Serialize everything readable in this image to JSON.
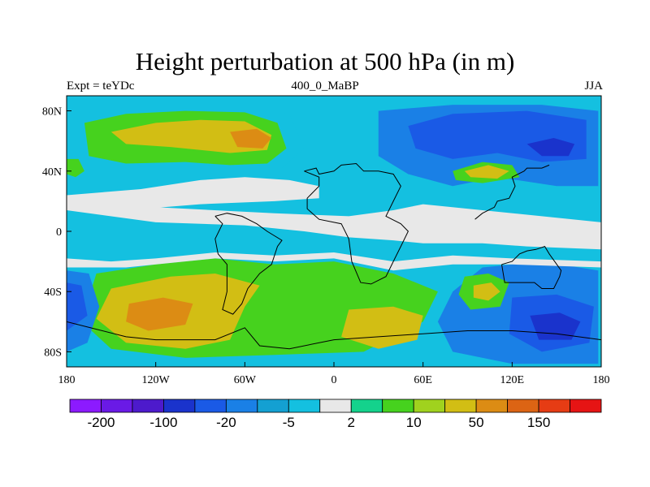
{
  "header": {
    "title": "Height perturbation at 500 hPa (in m)",
    "left": "Expt = teYDc",
    "center": "400_0_MaBP",
    "right": "JJA"
  },
  "axes": {
    "x_ticks": [
      {
        "value": -180,
        "label": "180"
      },
      {
        "value": -120,
        "label": "120W"
      },
      {
        "value": -60,
        "label": "60W"
      },
      {
        "value": 0,
        "label": "0"
      },
      {
        "value": 60,
        "label": "60E"
      },
      {
        "value": 120,
        "label": "120E"
      },
      {
        "value": 180,
        "label": "180"
      }
    ],
    "y_ticks": [
      {
        "value": 80,
        "label": "80N"
      },
      {
        "value": 40,
        "label": "40N"
      },
      {
        "value": 0,
        "label": "0"
      },
      {
        "value": -40,
        "label": "40S"
      },
      {
        "value": -80,
        "label": "80S"
      }
    ],
    "lon_range": [
      -180,
      180
    ],
    "lat_range": [
      -90,
      90
    ]
  },
  "colorbar": {
    "colors": [
      "#8c1aff",
      "#6a1ae6",
      "#4d1acc",
      "#1a33cc",
      "#1a5ae6",
      "#1a80e6",
      "#14a0d2",
      "#14c0e0",
      "#e8e8e8",
      "#14d28c",
      "#46d21e",
      "#a0d21e",
      "#d2be14",
      "#dc8c14",
      "#dc6414",
      "#e63c14",
      "#e61414"
    ],
    "labels": [
      {
        "boundary": 1,
        "text": "-200"
      },
      {
        "boundary": 3,
        "text": "-100"
      },
      {
        "boundary": 5,
        "text": "-20"
      },
      {
        "boundary": 7,
        "text": "-5"
      },
      {
        "boundary": 9,
        "text": "2"
      },
      {
        "boundary": 11,
        "text": "10"
      },
      {
        "boundary": 13,
        "text": "50"
      },
      {
        "boundary": 15,
        "text": "150"
      }
    ]
  },
  "map_data": {
    "regions": [
      {
        "name": "north-land-blob",
        "color": "#14c0e0",
        "points": [
          [
            -172,
            78
          ],
          [
            -140,
            82
          ],
          [
            -100,
            84
          ],
          [
            -60,
            82
          ],
          [
            -30,
            78
          ],
          [
            -20,
            55
          ],
          [
            -35,
            42
          ],
          [
            -60,
            38
          ],
          [
            -100,
            38
          ],
          [
            -130,
            32
          ],
          [
            -160,
            28
          ],
          [
            -178,
            30
          ]
        ]
      },
      {
        "name": "north-green",
        "color": "#46d21e",
        "points": [
          [
            -168,
            72
          ],
          [
            -140,
            78
          ],
          [
            -100,
            80
          ],
          [
            -60,
            79
          ],
          [
            -38,
            72
          ],
          [
            -32,
            55
          ],
          [
            -45,
            45
          ],
          [
            -70,
            44
          ],
          [
            -100,
            46
          ],
          [
            -140,
            45
          ],
          [
            -165,
            50
          ]
        ]
      },
      {
        "name": "north-olive",
        "color": "#d2be14",
        "points": [
          [
            -150,
            66
          ],
          [
            -120,
            72
          ],
          [
            -90,
            74
          ],
          [
            -60,
            73
          ],
          [
            -42,
            64
          ],
          [
            -45,
            54
          ],
          [
            -70,
            52
          ],
          [
            -110,
            56
          ],
          [
            -140,
            58
          ]
        ]
      },
      {
        "name": "north-orange",
        "color": "#dc8c14",
        "points": [
          [
            -70,
            66
          ],
          [
            -52,
            68
          ],
          [
            -42,
            62
          ],
          [
            -48,
            55
          ],
          [
            -65,
            56
          ]
        ]
      },
      {
        "name": "ne-blue-high",
        "color": "#1a80e6",
        "points": [
          [
            30,
            80
          ],
          [
            80,
            84
          ],
          [
            140,
            84
          ],
          [
            178,
            80
          ],
          [
            178,
            30
          ],
          [
            150,
            30
          ],
          [
            110,
            36
          ],
          [
            80,
            30
          ],
          [
            50,
            38
          ],
          [
            30,
            50
          ]
        ]
      },
      {
        "name": "ne-blue-mid",
        "color": "#1a5ae6",
        "points": [
          [
            50,
            70
          ],
          [
            80,
            78
          ],
          [
            130,
            80
          ],
          [
            170,
            74
          ],
          [
            170,
            48
          ],
          [
            140,
            46
          ],
          [
            110,
            52
          ],
          [
            80,
            48
          ],
          [
            55,
            55
          ]
        ]
      },
      {
        "name": "ne-blue-deep",
        "color": "#1a33cc",
        "points": [
          [
            130,
            58
          ],
          [
            148,
            62
          ],
          [
            162,
            58
          ],
          [
            158,
            50
          ],
          [
            140,
            50
          ]
        ]
      },
      {
        "name": "ne-green-lens",
        "color": "#46d21e",
        "points": [
          [
            80,
            40
          ],
          [
            100,
            46
          ],
          [
            120,
            44
          ],
          [
            125,
            36
          ],
          [
            100,
            32
          ],
          [
            82,
            34
          ]
        ]
      },
      {
        "name": "ne-olive-lens",
        "color": "#d2be14",
        "points": [
          [
            88,
            40
          ],
          [
            104,
            44
          ],
          [
            118,
            40
          ],
          [
            110,
            35
          ],
          [
            92,
            36
          ]
        ]
      },
      {
        "name": "equator-band",
        "color": "#14c0e0",
        "points": [
          [
            -120,
            8
          ],
          [
            -80,
            10
          ],
          [
            -40,
            6
          ],
          [
            -10,
            2
          ],
          [
            20,
            -2
          ],
          [
            40,
            0
          ],
          [
            40,
            -10
          ],
          [
            10,
            -10
          ],
          [
            -40,
            -8
          ],
          [
            -100,
            -4
          ],
          [
            -130,
            0
          ]
        ]
      },
      {
        "name": "south-green",
        "color": "#46d21e",
        "points": [
          [
            -160,
            -28
          ],
          [
            -120,
            -22
          ],
          [
            -80,
            -18
          ],
          [
            -40,
            -22
          ],
          [
            0,
            -20
          ],
          [
            40,
            -28
          ],
          [
            70,
            -40
          ],
          [
            60,
            -60
          ],
          [
            20,
            -80
          ],
          [
            -40,
            -82
          ],
          [
            -100,
            -84
          ],
          [
            -150,
            -78
          ],
          [
            -170,
            -60
          ]
        ]
      },
      {
        "name": "south-olive",
        "color": "#d2be14",
        "points": [
          [
            -150,
            -38
          ],
          [
            -110,
            -30
          ],
          [
            -80,
            -28
          ],
          [
            -50,
            -36
          ],
          [
            -60,
            -50
          ],
          [
            -70,
            -72
          ],
          [
            -100,
            -78
          ],
          [
            -140,
            -74
          ],
          [
            -160,
            -58
          ]
        ]
      },
      {
        "name": "south-orange",
        "color": "#dc8c14",
        "points": [
          [
            -138,
            -48
          ],
          [
            -115,
            -44
          ],
          [
            -95,
            -48
          ],
          [
            -100,
            -62
          ],
          [
            -125,
            -66
          ],
          [
            -140,
            -60
          ]
        ]
      },
      {
        "name": "south-east-olive",
        "color": "#d2be14",
        "points": [
          [
            10,
            -52
          ],
          [
            40,
            -50
          ],
          [
            60,
            -56
          ],
          [
            56,
            -72
          ],
          [
            30,
            -78
          ],
          [
            5,
            -70
          ]
        ]
      },
      {
        "name": "se-blue-high",
        "color": "#1a80e6",
        "points": [
          [
            100,
            -24
          ],
          [
            140,
            -20
          ],
          [
            178,
            -26
          ],
          [
            178,
            -88
          ],
          [
            120,
            -88
          ],
          [
            80,
            -80
          ],
          [
            70,
            -60
          ],
          [
            80,
            -40
          ]
        ]
      },
      {
        "name": "se-blue-mid",
        "color": "#1a5ae6",
        "points": [
          [
            120,
            -44
          ],
          [
            150,
            -42
          ],
          [
            175,
            -50
          ],
          [
            172,
            -74
          ],
          [
            140,
            -80
          ],
          [
            118,
            -68
          ]
        ]
      },
      {
        "name": "se-blue-deep",
        "color": "#1a33cc",
        "points": [
          [
            132,
            -56
          ],
          [
            152,
            -54
          ],
          [
            166,
            -60
          ],
          [
            160,
            -72
          ],
          [
            138,
            -72
          ]
        ]
      },
      {
        "name": "sw-blue",
        "color": "#1a80e6",
        "points": [
          [
            -180,
            -26
          ],
          [
            -165,
            -28
          ],
          [
            -158,
            -50
          ],
          [
            -166,
            -74
          ],
          [
            -180,
            -80
          ]
        ]
      },
      {
        "name": "sw-blue-deep",
        "color": "#1a5ae6",
        "points": [
          [
            -180,
            -34
          ],
          [
            -170,
            -36
          ],
          [
            -166,
            -56
          ],
          [
            -180,
            -66
          ]
        ]
      },
      {
        "name": "east-green-lens",
        "color": "#46d21e",
        "points": [
          [
            88,
            -30
          ],
          [
            104,
            -28
          ],
          [
            118,
            -34
          ],
          [
            112,
            -50
          ],
          [
            92,
            -52
          ],
          [
            84,
            -42
          ]
        ]
      },
      {
        "name": "east-olive-lens",
        "color": "#d2be14",
        "points": [
          [
            94,
            -36
          ],
          [
            106,
            -34
          ],
          [
            112,
            -40
          ],
          [
            104,
            -46
          ],
          [
            94,
            -44
          ]
        ]
      },
      {
        "name": "west-edge-green",
        "color": "#46d21e",
        "points": [
          [
            -180,
            48
          ],
          [
            -172,
            48
          ],
          [
            -168,
            40
          ],
          [
            -174,
            36
          ],
          [
            -180,
            38
          ]
        ]
      }
    ],
    "coastlines": [
      [
        [
          -20,
          40
        ],
        [
          -12,
          42
        ],
        [
          -10,
          38
        ],
        [
          0,
          40
        ],
        [
          5,
          44
        ],
        [
          15,
          45
        ],
        [
          20,
          40
        ],
        [
          30,
          40
        ],
        [
          40,
          38
        ],
        [
          45,
          30
        ],
        [
          40,
          20
        ],
        [
          35,
          10
        ],
        [
          45,
          5
        ],
        [
          50,
          0
        ],
        [
          45,
          -10
        ],
        [
          40,
          -20
        ],
        [
          35,
          -30
        ],
        [
          25,
          -35
        ],
        [
          18,
          -34
        ],
        [
          12,
          -20
        ],
        [
          10,
          -5
        ],
        [
          5,
          5
        ],
        [
          -10,
          8
        ],
        [
          -18,
          15
        ],
        [
          -18,
          22
        ],
        [
          -10,
          30
        ],
        [
          -10,
          36
        ],
        [
          -20,
          40
        ]
      ],
      [
        [
          -80,
          10
        ],
        [
          -75,
          5
        ],
        [
          -80,
          -5
        ],
        [
          -78,
          -15
        ],
        [
          -72,
          -22
        ],
        [
          -72,
          -40
        ],
        [
          -75,
          -52
        ],
        [
          -68,
          -55
        ],
        [
          -62,
          -48
        ],
        [
          -58,
          -38
        ],
        [
          -50,
          -28
        ],
        [
          -42,
          -22
        ],
        [
          -38,
          -10
        ],
        [
          -35,
          -6
        ],
        [
          -45,
          0
        ],
        [
          -52,
          5
        ],
        [
          -62,
          10
        ],
        [
          -72,
          12
        ],
        [
          -80,
          10
        ]
      ],
      [
        [
          113,
          -22
        ],
        [
          115,
          -34
        ],
        [
          125,
          -34
        ],
        [
          135,
          -34
        ],
        [
          140,
          -38
        ],
        [
          148,
          -38
        ],
        [
          152,
          -30
        ],
        [
          153,
          -26
        ],
        [
          145,
          -15
        ],
        [
          142,
          -10
        ],
        [
          136,
          -12
        ],
        [
          130,
          -13
        ],
        [
          125,
          -15
        ],
        [
          120,
          -20
        ],
        [
          113,
          -22
        ]
      ],
      [
        [
          -180,
          -60
        ],
        [
          -160,
          -65
        ],
        [
          -140,
          -70
        ],
        [
          -120,
          -72
        ],
        [
          -100,
          -72
        ],
        [
          -80,
          -72
        ],
        [
          -60,
          -64
        ],
        [
          -50,
          -76
        ],
        [
          -30,
          -78
        ],
        [
          0,
          -72
        ],
        [
          30,
          -70
        ],
        [
          60,
          -68
        ],
        [
          90,
          -66
        ],
        [
          120,
          -66
        ],
        [
          150,
          -68
        ],
        [
          180,
          -72
        ]
      ],
      [
        [
          95,
          8
        ],
        [
          100,
          12
        ],
        [
          108,
          16
        ],
        [
          110,
          20
        ],
        [
          118,
          22
        ],
        [
          122,
          30
        ],
        [
          120,
          36
        ],
        [
          128,
          40
        ],
        [
          130,
          42
        ],
        [
          140,
          42
        ],
        [
          145,
          44
        ]
      ]
    ]
  }
}
